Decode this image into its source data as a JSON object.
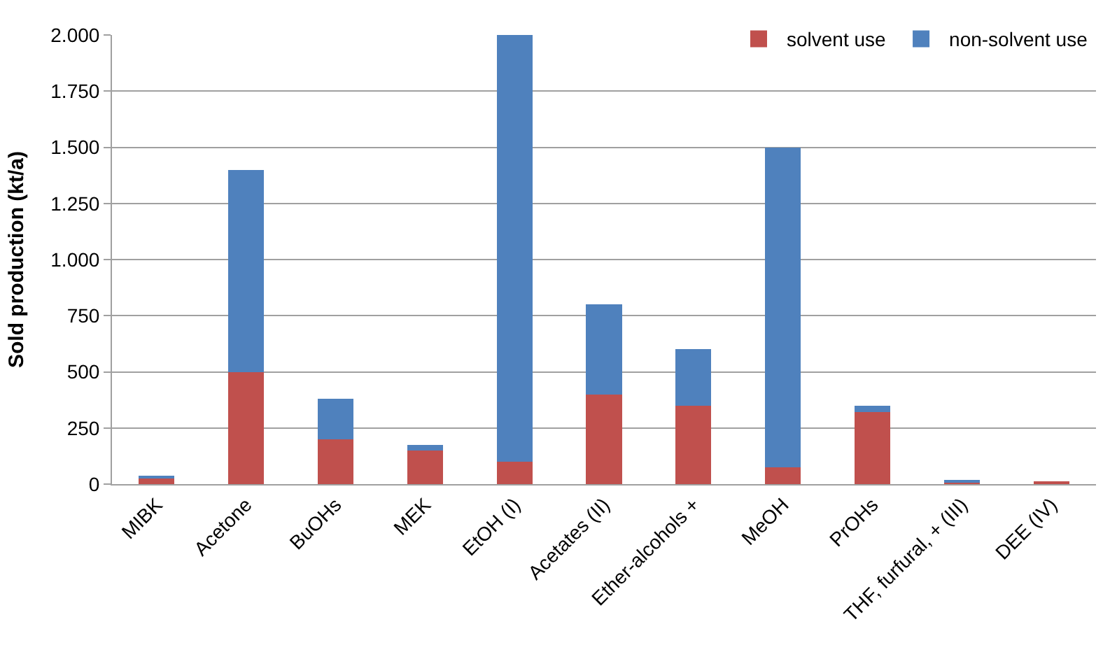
{
  "chart_data": {
    "type": "bar",
    "stacked": true,
    "ylabel": "Sold production (kt/a)",
    "categories": [
      "MIBK",
      "Acetone",
      "BuOHs",
      "MEK",
      "EtOH (I)",
      "Acetates (II)",
      "Ether-alcohols +",
      "MeOH",
      "PrOHs",
      "THF, furfural, + (III)",
      "DEE (IV)"
    ],
    "series": [
      {
        "name": "solvent use",
        "color": "#c0504d",
        "values": [
          25,
          500,
          200,
          150,
          100,
          400,
          350,
          75,
          320,
          10,
          8
        ]
      },
      {
        "name": "non-solvent use",
        "color": "#4f81bd",
        "values": [
          10,
          900,
          180,
          25,
          1900,
          400,
          250,
          1425,
          30,
          5,
          null
        ]
      }
    ],
    "ylim": [
      0,
      2000
    ],
    "yticks": [
      {
        "value": 0,
        "label": "0"
      },
      {
        "value": 250,
        "label": "250"
      },
      {
        "value": 500,
        "label": "500"
      },
      {
        "value": 750,
        "label": "750"
      },
      {
        "value": 1000,
        "label": "1.000"
      },
      {
        "value": 1250,
        "label": "1.250"
      },
      {
        "value": 1500,
        "label": "1.500"
      },
      {
        "value": 1750,
        "label": "1.750"
      },
      {
        "value": 2000,
        "label": "2.000"
      }
    ],
    "grid": "y",
    "legend": "top right"
  }
}
